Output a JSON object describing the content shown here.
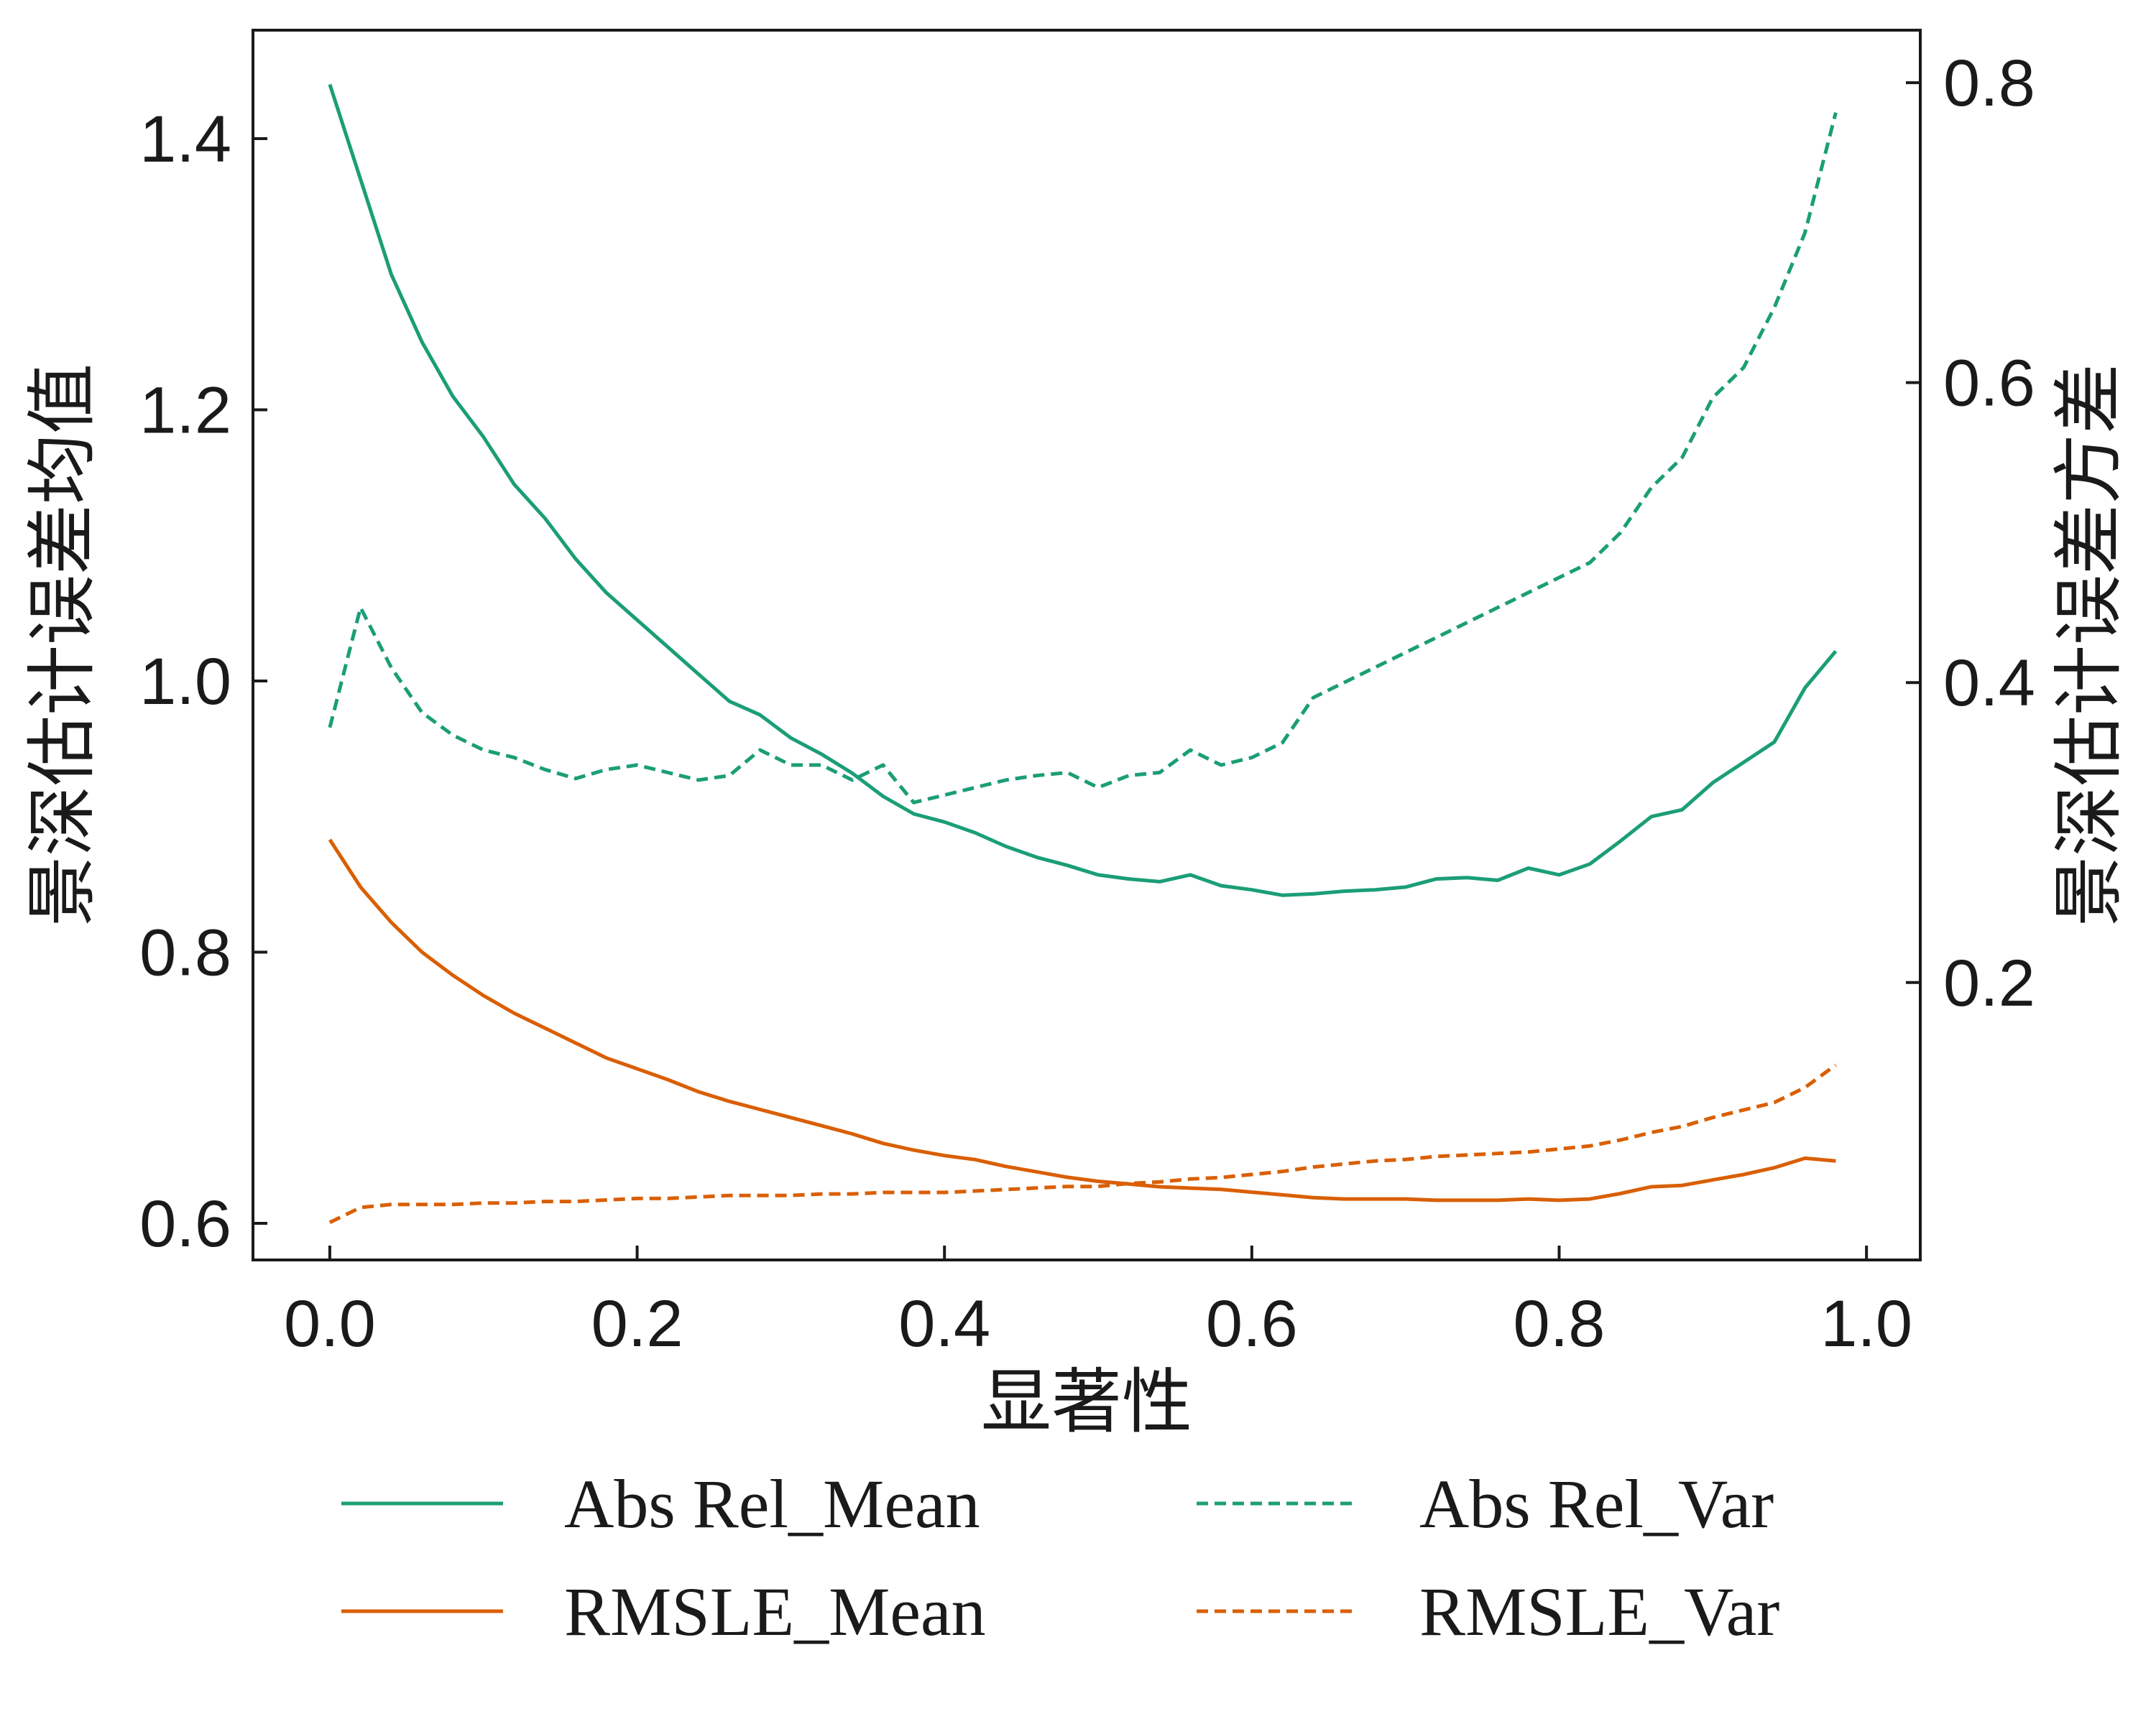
{
  "chart_data": {
    "type": "line",
    "xlabel": "显著性",
    "ylabel_left": "景深估计误差均值",
    "ylabel_right": "景深估计误差方差",
    "xlim": [
      -0.05,
      1.035
    ],
    "ylim_left": [
      0.573,
      1.48
    ],
    "ylim_right": [
      0.015,
      0.835
    ],
    "x_ticks": [
      0.0,
      0.2,
      0.4,
      0.6,
      0.8,
      1.0
    ],
    "x_tick_labels": [
      "0.0",
      "0.2",
      "0.4",
      "0.6",
      "0.8",
      "1.0"
    ],
    "y_left_ticks": [
      0.6,
      0.8,
      1.0,
      1.2,
      1.4
    ],
    "y_left_tick_labels": [
      "0.6",
      "0.8",
      "1.0",
      "1.2",
      "1.4"
    ],
    "y_right_ticks": [
      0.2,
      0.4,
      0.6,
      0.8
    ],
    "y_right_tick_labels": [
      "0.2",
      "0.4",
      "0.6",
      "0.8"
    ],
    "grid": false,
    "legend_position": "bottom",
    "series": [
      {
        "name": "Abs Rel_Mean",
        "axis": "left",
        "color": "#1b9e77",
        "dash": "solid",
        "x": [
          0.0,
          0.02,
          0.04,
          0.06,
          0.08,
          0.1,
          0.12,
          0.14,
          0.16,
          0.18,
          0.2,
          0.22,
          0.24,
          0.26,
          0.28,
          0.3,
          0.32,
          0.34,
          0.36,
          0.38,
          0.4,
          0.42,
          0.44,
          0.46,
          0.48,
          0.5,
          0.52,
          0.54,
          0.56,
          0.58,
          0.6,
          0.62,
          0.64,
          0.66,
          0.68,
          0.7,
          0.72,
          0.74,
          0.76,
          0.78,
          0.8,
          0.82,
          0.84,
          0.86,
          0.88,
          0.9,
          0.92,
          0.94,
          0.96,
          0.98
        ],
        "y": [
          1.44,
          1.37,
          1.3,
          1.25,
          1.21,
          1.18,
          1.145,
          1.12,
          1.09,
          1.065,
          1.045,
          1.025,
          1.005,
          0.985,
          0.975,
          0.958,
          0.946,
          0.932,
          0.915,
          0.902,
          0.896,
          0.888,
          0.878,
          0.87,
          0.864,
          0.857,
          0.854,
          0.852,
          0.857,
          0.849,
          0.846,
          0.842,
          0.843,
          0.845,
          0.846,
          0.848,
          0.854,
          0.855,
          0.853,
          0.862,
          0.857,
          0.865,
          0.882,
          0.9,
          0.905,
          0.925,
          0.94,
          0.955,
          0.995,
          1.022
        ]
      },
      {
        "name": "RMSLE_Mean",
        "axis": "left",
        "color": "#d95f02",
        "dash": "solid",
        "x": [
          0.0,
          0.02,
          0.04,
          0.06,
          0.08,
          0.1,
          0.12,
          0.14,
          0.16,
          0.18,
          0.2,
          0.22,
          0.24,
          0.26,
          0.28,
          0.3,
          0.32,
          0.34,
          0.36,
          0.38,
          0.4,
          0.42,
          0.44,
          0.46,
          0.48,
          0.5,
          0.52,
          0.54,
          0.56,
          0.58,
          0.6,
          0.62,
          0.64,
          0.66,
          0.68,
          0.7,
          0.72,
          0.74,
          0.76,
          0.78,
          0.8,
          0.82,
          0.84,
          0.86,
          0.88,
          0.9,
          0.92,
          0.94,
          0.96,
          0.98
        ],
        "y": [
          0.883,
          0.848,
          0.822,
          0.8,
          0.783,
          0.768,
          0.755,
          0.744,
          0.733,
          0.722,
          0.714,
          0.706,
          0.697,
          0.69,
          0.684,
          0.678,
          0.672,
          0.666,
          0.659,
          0.654,
          0.65,
          0.647,
          0.642,
          0.638,
          0.634,
          0.631,
          0.629,
          0.627,
          0.626,
          0.625,
          0.623,
          0.621,
          0.619,
          0.618,
          0.618,
          0.618,
          0.617,
          0.617,
          0.617,
          0.618,
          0.617,
          0.618,
          0.622,
          0.627,
          0.628,
          0.632,
          0.636,
          0.641,
          0.648,
          0.646
        ]
      },
      {
        "name": "Abs Rel_Var",
        "axis": "right",
        "color": "#1b9e77",
        "dash": "dashed",
        "x": [
          0.0,
          0.02,
          0.04,
          0.06,
          0.08,
          0.1,
          0.12,
          0.14,
          0.16,
          0.18,
          0.2,
          0.22,
          0.24,
          0.26,
          0.28,
          0.3,
          0.32,
          0.34,
          0.36,
          0.38,
          0.4,
          0.42,
          0.44,
          0.46,
          0.48,
          0.5,
          0.52,
          0.54,
          0.56,
          0.58,
          0.6,
          0.62,
          0.64,
          0.66,
          0.68,
          0.7,
          0.72,
          0.74,
          0.76,
          0.78,
          0.8,
          0.82,
          0.84,
          0.86,
          0.88,
          0.9,
          0.92,
          0.94,
          0.96,
          0.98
        ],
        "y": [
          0.37,
          0.45,
          0.41,
          0.38,
          0.365,
          0.355,
          0.35,
          0.342,
          0.336,
          0.342,
          0.345,
          0.34,
          0.335,
          0.338,
          0.355,
          0.345,
          0.345,
          0.335,
          0.345,
          0.32,
          0.325,
          0.33,
          0.335,
          0.338,
          0.34,
          0.33,
          0.338,
          0.34,
          0.355,
          0.345,
          0.35,
          0.36,
          0.39,
          0.4,
          0.41,
          0.42,
          0.43,
          0.44,
          0.45,
          0.46,
          0.47,
          0.48,
          0.5,
          0.53,
          0.55,
          0.59,
          0.61,
          0.65,
          0.7,
          0.78
        ]
      },
      {
        "name": "RMSLE_Var",
        "axis": "right",
        "color": "#d95f02",
        "dash": "dashed",
        "x": [
          0.0,
          0.02,
          0.04,
          0.06,
          0.08,
          0.1,
          0.12,
          0.14,
          0.16,
          0.18,
          0.2,
          0.22,
          0.24,
          0.26,
          0.28,
          0.3,
          0.32,
          0.34,
          0.36,
          0.38,
          0.4,
          0.42,
          0.44,
          0.46,
          0.48,
          0.5,
          0.52,
          0.54,
          0.56,
          0.58,
          0.6,
          0.62,
          0.64,
          0.66,
          0.68,
          0.7,
          0.72,
          0.74,
          0.76,
          0.78,
          0.8,
          0.82,
          0.84,
          0.86,
          0.88,
          0.9,
          0.92,
          0.94,
          0.96,
          0.98
        ],
        "y": [
          0.04,
          0.05,
          0.052,
          0.052,
          0.052,
          0.053,
          0.053,
          0.054,
          0.054,
          0.055,
          0.056,
          0.056,
          0.057,
          0.058,
          0.058,
          0.058,
          0.059,
          0.059,
          0.06,
          0.06,
          0.06,
          0.061,
          0.062,
          0.063,
          0.064,
          0.064,
          0.066,
          0.067,
          0.069,
          0.07,
          0.072,
          0.074,
          0.077,
          0.079,
          0.081,
          0.082,
          0.084,
          0.085,
          0.086,
          0.087,
          0.089,
          0.091,
          0.095,
          0.1,
          0.104,
          0.11,
          0.115,
          0.12,
          0.13,
          0.145
        ]
      }
    ]
  }
}
